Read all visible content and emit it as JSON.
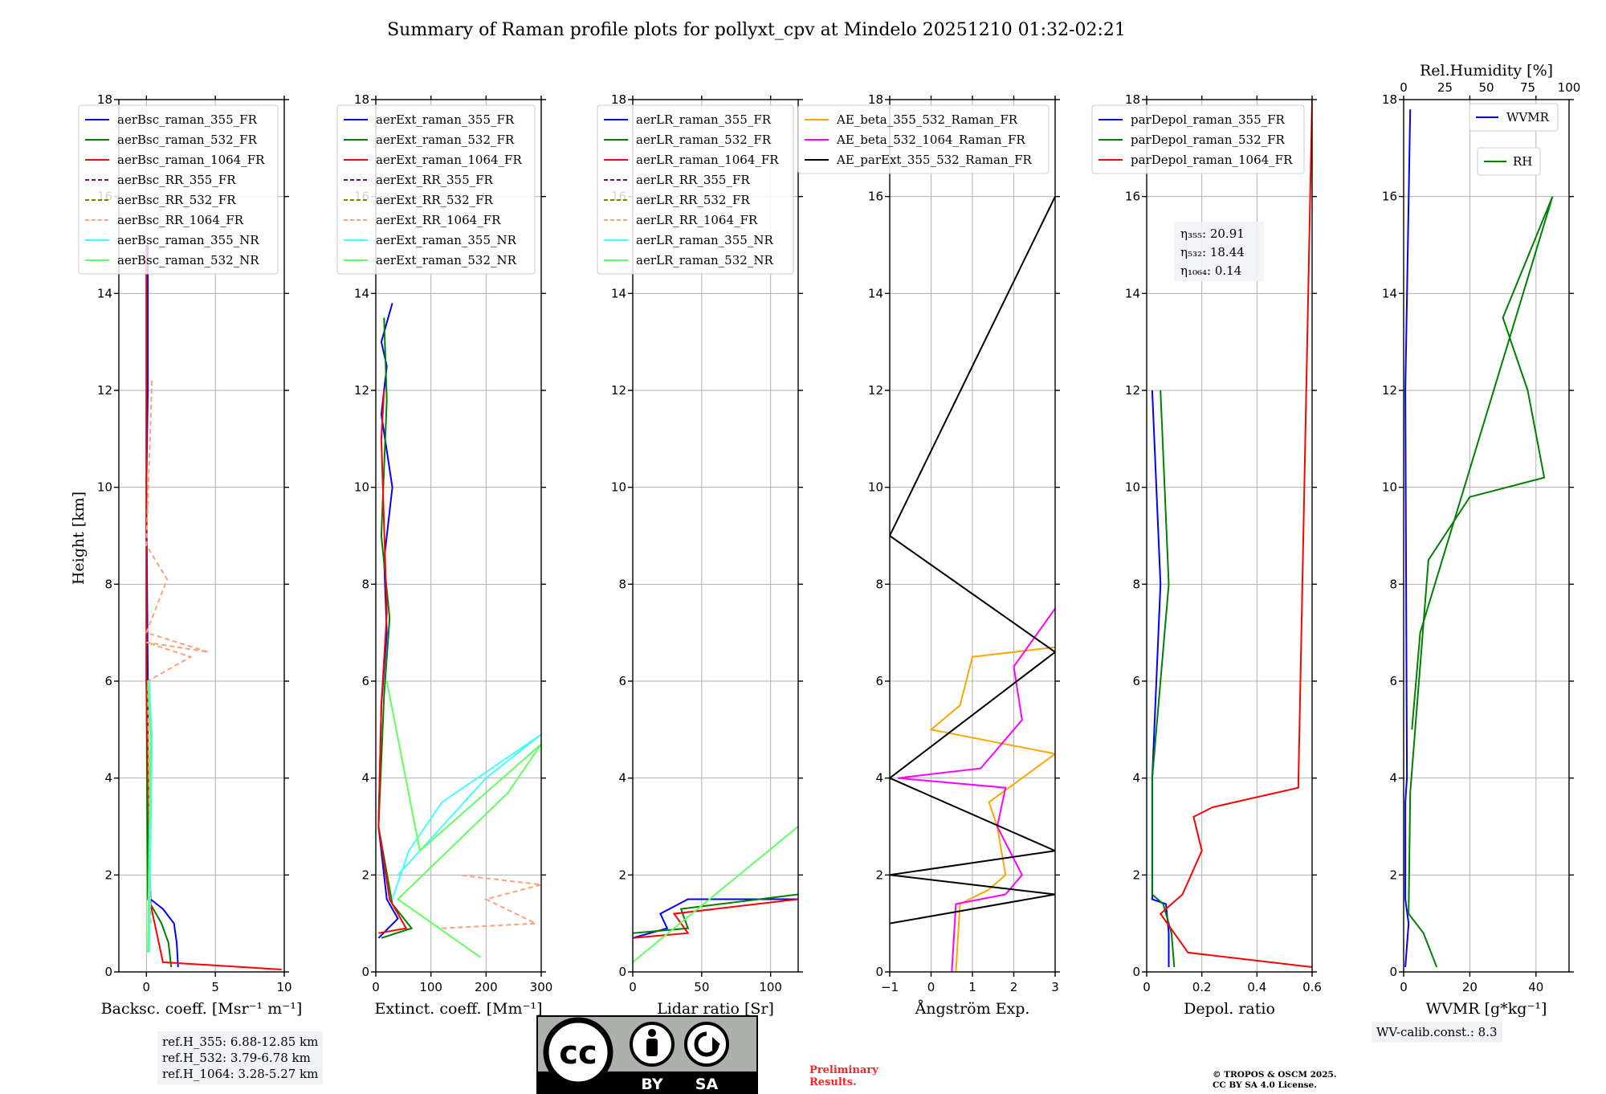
{
  "figure": {
    "title": "Summary of Raman profile plots for pollyxt_cpv at Mindelo 20251210 01:32-02:21",
    "ylabel": "Height [km]"
  },
  "chart_data": [
    {
      "type": "line",
      "id": "backscatter",
      "xlabel": "Backsc. coeff. [Msr⁻¹ m⁻¹]",
      "xlim": [
        -2,
        10
      ],
      "ylim": [
        0,
        18
      ],
      "xticks": [
        0,
        5,
        10
      ],
      "yticks": [
        0,
        2,
        4,
        6,
        8,
        10,
        12,
        14,
        16,
        18
      ],
      "grid": true,
      "legend_position": "top-left",
      "series": [
        {
          "name": "aerBsc_raman_355_FR",
          "color": "#0000ff",
          "style": "solid",
          "x": [
            2.3,
            2.2,
            2.0,
            1.2,
            0.3,
            0.1,
            0.1,
            0.0,
            0.1,
            0.1,
            0.1
          ],
          "y": [
            0.1,
            0.6,
            1.0,
            1.3,
            1.5,
            3.0,
            6.0,
            10.0,
            12.0,
            13.5,
            15.0
          ]
        },
        {
          "name": "aerBsc_raman_532_FR",
          "color": "#008000",
          "style": "solid",
          "x": [
            1.8,
            1.6,
            1.1,
            0.5,
            0.1,
            0.0,
            0.0
          ],
          "y": [
            0.1,
            0.6,
            1.0,
            1.3,
            1.5,
            6.0,
            15.0
          ]
        },
        {
          "name": "aerBsc_raman_1064_FR",
          "color": "#ff0000",
          "style": "solid",
          "x": [
            9.8,
            1.2,
            0.9,
            0.6,
            0.3,
            0.0,
            0.0
          ],
          "y": [
            0.05,
            0.2,
            0.6,
            1.0,
            1.4,
            6.0,
            15.0
          ]
        },
        {
          "name": "aerBsc_RR_355_FR",
          "color": "#800080",
          "style": "dashed",
          "x": [],
          "y": []
        },
        {
          "name": "aerBsc_RR_532_FR",
          "color": "#808000",
          "style": "dashed",
          "x": [],
          "y": []
        },
        {
          "name": "aerBsc_RR_1064_FR",
          "color": "#ffa07a",
          "style": "dashed",
          "x": [
            0.3,
            0.1,
            3.2,
            0.0,
            4.5,
            0.0,
            1.5,
            0.0,
            0.4
          ],
          "y": [
            1.0,
            6.0,
            6.5,
            6.8,
            6.6,
            7.0,
            8.1,
            8.8,
            12.2
          ]
        },
        {
          "name": "aerBsc_raman_355_NR",
          "color": "#40ffff",
          "style": "solid",
          "x": [
            0.2,
            0.4,
            0.2
          ],
          "y": [
            0.4,
            4.8,
            6.0
          ]
        },
        {
          "name": "aerBsc_raman_532_NR",
          "color": "#60ff60",
          "style": "solid",
          "x": [
            0.1,
            0.3,
            0.1
          ],
          "y": [
            0.4,
            4.9,
            6.0
          ]
        }
      ]
    },
    {
      "type": "line",
      "id": "extinction",
      "xlabel": "Extinct. coeff. [Mm⁻¹]",
      "xlim": [
        0,
        300
      ],
      "ylim": [
        0,
        18
      ],
      "xticks": [
        0,
        100,
        200,
        300
      ],
      "yticks": [
        0,
        2,
        4,
        6,
        8,
        10,
        12,
        14,
        16,
        18
      ],
      "grid": true,
      "legend_position": "top-left",
      "series": [
        {
          "name": "aerExt_raman_355_FR",
          "color": "#0000ff",
          "style": "solid",
          "x": [
            5,
            40,
            20,
            5,
            10,
            20,
            15,
            30,
            10,
            20,
            10,
            30
          ],
          "y": [
            0.7,
            1.1,
            1.5,
            3.0,
            5.5,
            7.0,
            8.5,
            10.0,
            11.5,
            12.5,
            13.0,
            13.8
          ]
        },
        {
          "name": "aerExt_raman_532_FR",
          "color": "#008000",
          "style": "solid",
          "x": [
            10,
            65,
            30,
            5,
            15,
            25,
            10,
            20,
            15
          ],
          "y": [
            0.7,
            0.9,
            1.4,
            3.0,
            5.7,
            7.3,
            9.0,
            11.8,
            13.5
          ]
        },
        {
          "name": "aerExt_raman_1064_FR",
          "color": "#ff0000",
          "style": "solid",
          "x": [
            5,
            55,
            25,
            5,
            10,
            20,
            10,
            15
          ],
          "y": [
            0.8,
            0.9,
            1.5,
            3.0,
            5.5,
            7.4,
            11.0,
            12.0
          ]
        },
        {
          "name": "aerExt_RR_355_FR",
          "color": "#800080",
          "style": "dashed",
          "x": [],
          "y": []
        },
        {
          "name": "aerExt_RR_532_FR",
          "color": "#808000",
          "style": "dashed",
          "x": [],
          "y": []
        },
        {
          "name": "aerExt_RR_1064_FR",
          "color": "#ffa07a",
          "style": "dashed",
          "x": [
            120,
            290,
            200,
            300,
            150
          ],
          "y": [
            0.9,
            1.0,
            1.5,
            1.8,
            2.0
          ]
        },
        {
          "name": "aerExt_raman_355_NR",
          "color": "#40ffff",
          "style": "solid",
          "x": [
            30,
            60,
            120,
            300,
            200,
            40
          ],
          "y": [
            1.5,
            2.5,
            3.5,
            4.9,
            4.0,
            2.0
          ]
        },
        {
          "name": "aerExt_raman_532_NR",
          "color": "#60ff60",
          "style": "solid",
          "x": [
            190,
            40,
            240,
            300,
            80,
            20
          ],
          "y": [
            0.3,
            1.5,
            3.7,
            4.7,
            2.5,
            6.0
          ]
        }
      ]
    },
    {
      "type": "line",
      "id": "lidar_ratio",
      "xlabel": "Lidar ratio [Sr]",
      "xlim": [
        0,
        120
      ],
      "ylim": [
        0,
        18
      ],
      "xticks": [
        0,
        50,
        100
      ],
      "yticks": [
        0,
        2,
        4,
        6,
        8,
        10,
        12,
        14,
        16,
        18
      ],
      "grid": true,
      "legend_position": "top-left",
      "series": [
        {
          "name": "aerLR_raman_355_FR",
          "color": "#0000ff",
          "style": "solid",
          "x": [
            0,
            25,
            20,
            40,
            120
          ],
          "y": [
            0.7,
            0.9,
            1.2,
            1.5,
            1.5
          ]
        },
        {
          "name": "aerLR_raman_532_FR",
          "color": "#008000",
          "style": "solid",
          "x": [
            0,
            40,
            35,
            120
          ],
          "y": [
            0.8,
            0.9,
            1.3,
            1.6
          ]
        },
        {
          "name": "aerLR_raman_1064_FR",
          "color": "#ff0000",
          "style": "solid",
          "x": [
            0,
            40,
            30,
            120
          ],
          "y": [
            0.7,
            0.8,
            1.2,
            1.5
          ]
        },
        {
          "name": "aerLR_RR_355_FR",
          "color": "#800080",
          "style": "dashed",
          "x": [],
          "y": []
        },
        {
          "name": "aerLR_RR_532_FR",
          "color": "#808000",
          "style": "dashed",
          "x": [],
          "y": []
        },
        {
          "name": "aerLR_RR_1064_FR",
          "color": "#ffa07a",
          "style": "dashed",
          "x": [],
          "y": []
        },
        {
          "name": "aerLR_raman_355_NR",
          "color": "#40ffff",
          "style": "solid",
          "x": [],
          "y": []
        },
        {
          "name": "aerLR_raman_532_NR",
          "color": "#60ff60",
          "style": "solid",
          "x": [
            0,
            120
          ],
          "y": [
            0.2,
            3.0
          ]
        }
      ]
    },
    {
      "type": "line",
      "id": "angstrom",
      "xlabel": "Ångström Exp.",
      "xlim": [
        -1,
        3
      ],
      "ylim": [
        0,
        18
      ],
      "xticks": [
        -1,
        0,
        1,
        2,
        3
      ],
      "yticks": [
        0,
        2,
        4,
        6,
        8,
        10,
        12,
        14,
        16,
        18
      ],
      "grid": true,
      "legend_position": "top-right",
      "series": [
        {
          "name": "AE_beta_355_532_Raman_FR",
          "color": "#ffa500",
          "style": "solid",
          "x": [
            0.6,
            0.7,
            1.4,
            1.8,
            1.6,
            1.4,
            3.0,
            0.0,
            0.7,
            1.0,
            3.0
          ],
          "y": [
            0.0,
            1.4,
            1.7,
            2.0,
            3.0,
            3.5,
            4.5,
            5.0,
            5.5,
            6.5,
            6.7
          ]
        },
        {
          "name": "AE_beta_532_1064_Raman_FR",
          "color": "#ff00ff",
          "style": "solid",
          "x": [
            0.5,
            0.6,
            1.8,
            2.2,
            1.6,
            1.8,
            -0.8,
            1.2,
            2.2,
            2.0,
            3.0
          ],
          "y": [
            0.0,
            1.4,
            1.6,
            2.0,
            3.0,
            3.8,
            4.0,
            4.2,
            5.2,
            6.3,
            7.5
          ]
        },
        {
          "name": "AE_parExt_355_532_Raman_FR",
          "color": "#000000",
          "style": "solid",
          "x": [
            -1.0,
            3.0,
            -1.0,
            3.0,
            -1.0,
            3.0,
            -1.0,
            3.0
          ],
          "y": [
            1.0,
            1.6,
            2.0,
            2.5,
            4.0,
            6.6,
            9.0,
            16.0
          ]
        }
      ]
    },
    {
      "type": "line",
      "id": "depolarization",
      "xlabel": "Depol. ratio",
      "xlim": [
        0.0,
        0.6
      ],
      "ylim": [
        0,
        18
      ],
      "xticks": [
        0.0,
        0.2,
        0.4,
        0.6
      ],
      "yticks": [
        0,
        2,
        4,
        6,
        8,
        10,
        12,
        14,
        16,
        18
      ],
      "grid": true,
      "legend_position": "top-left",
      "series": [
        {
          "name": "parDepol_raman_355_FR",
          "color": "#0000ff",
          "style": "solid",
          "x": [
            0.08,
            0.08,
            0.07,
            0.02,
            0.02,
            0.05,
            0.02
          ],
          "y": [
            0.1,
            0.8,
            1.4,
            1.5,
            4.0,
            8.0,
            12.0
          ]
        },
        {
          "name": "parDepol_raman_532_FR",
          "color": "#008000",
          "style": "solid",
          "x": [
            0.1,
            0.09,
            0.06,
            0.02,
            0.02,
            0.08,
            0.05
          ],
          "y": [
            0.1,
            0.8,
            1.4,
            1.6,
            4.0,
            8.0,
            12.0
          ]
        },
        {
          "name": "parDepol_raman_1064_FR",
          "color": "#ff0000",
          "style": "solid",
          "x": [
            0.6,
            0.15,
            0.05,
            0.13,
            0.2,
            0.17,
            0.24,
            0.55,
            0.6
          ],
          "y": [
            0.1,
            0.4,
            1.2,
            1.6,
            2.5,
            3.2,
            3.4,
            3.8,
            18.0
          ]
        }
      ],
      "eta": [
        {
          "label": "η₃₅₅: 20.91"
        },
        {
          "label": "η₅₃₂: 18.44"
        },
        {
          "label": "η₁₀₆₄: 0.14"
        }
      ]
    },
    {
      "type": "line",
      "id": "water_vapor",
      "xlabel": "WVMR [g*kg⁻¹]",
      "x2label": "Rel.Humidity [%]",
      "xlim": [
        0,
        50
      ],
      "x2lim": [
        0,
        100
      ],
      "ylim": [
        0,
        18
      ],
      "xticks": [
        0,
        20,
        40
      ],
      "x2ticks": [
        0,
        25,
        50,
        75,
        100
      ],
      "yticks": [
        0,
        2,
        4,
        6,
        8,
        10,
        12,
        14,
        16,
        18
      ],
      "grid": true,
      "series": [
        {
          "name": "WVMR",
          "color": "#0000ff",
          "axis": "x",
          "legend_position": "top-right",
          "x": [
            0.5,
            1.5,
            0.5,
            0.5,
            1.0,
            0.5,
            2.0
          ],
          "y": [
            0.1,
            1.0,
            1.5,
            3.5,
            4.0,
            12.0,
            17.8
          ]
        },
        {
          "name": "RH",
          "color": "#008000",
          "axis": "x2",
          "legend_position": "upper-middle",
          "x": [
            20,
            12,
            3,
            4,
            15,
            40,
            85,
            75,
            60,
            90,
            10,
            5
          ],
          "y": [
            0.1,
            0.8,
            1.2,
            3.7,
            8.5,
            9.8,
            10.2,
            12.0,
            13.5,
            16.0,
            7.0,
            5.0
          ]
        }
      ]
    }
  ],
  "annotations": {
    "ref_heights": [
      "ref.H_355: 6.88-12.85 km",
      "ref.H_532: 3.79-6.78 km",
      "ref.H_1064: 3.28-5.27 km"
    ],
    "wv_calib": "WV-calib.const.: 8.3",
    "preliminary": [
      "Preliminary",
      "Results."
    ],
    "copyright": [
      "© TROPOS & OSCM 2025.",
      "CC BY SA 4.0 License."
    ],
    "license_badge": [
      "BY",
      "SA"
    ]
  }
}
